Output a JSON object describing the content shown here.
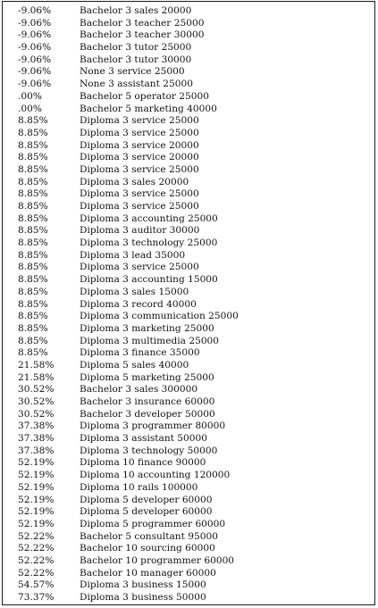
{
  "rows": [
    {
      "pct": "-9.06%",
      "desc": "Bachelor 3 sales 20000"
    },
    {
      "pct": "-9.06%",
      "desc": "Bachelor 3 teacher 25000"
    },
    {
      "pct": "-9.06%",
      "desc": "Bachelor 3 teacher 30000"
    },
    {
      "pct": "-9.06%",
      "desc": "Bachelor 3 tutor 25000"
    },
    {
      "pct": "-9.06%",
      "desc": "Bachelor 3 tutor 30000"
    },
    {
      "pct": "-9.06%",
      "desc": "None 3 service 25000"
    },
    {
      "pct": "-9.06%",
      "desc": "None 3 assistant 25000"
    },
    {
      "pct": ".00%",
      "desc": "Bachelor 5 operator 25000"
    },
    {
      "pct": ".00%",
      "desc": "Bachelor 5 marketing 40000"
    },
    {
      "pct": "8.85%",
      "desc": "Diploma 3 service 25000"
    },
    {
      "pct": "8.85%",
      "desc": "Diploma 3 service 25000"
    },
    {
      "pct": "8.85%",
      "desc": "Diploma 3 service 20000"
    },
    {
      "pct": "8.85%",
      "desc": "Diploma 3 service 20000"
    },
    {
      "pct": "8.85%",
      "desc": "Diploma 3 service 25000"
    },
    {
      "pct": "8.85%",
      "desc": "Diploma 3 sales 20000"
    },
    {
      "pct": "8.85%",
      "desc": "Diploma 3 service 25000"
    },
    {
      "pct": "8.85%",
      "desc": "Diploma 3 service 25000"
    },
    {
      "pct": "8.85%",
      "desc": "Diploma 3 accounting 25000"
    },
    {
      "pct": "8.85%",
      "desc": "Diploma 3 auditor 30000"
    },
    {
      "pct": "8.85%",
      "desc": "Diploma 3 technology 25000"
    },
    {
      "pct": "8.85%",
      "desc": "Diploma 3 lead 35000"
    },
    {
      "pct": "8.85%",
      "desc": "Diploma 3 service 25000"
    },
    {
      "pct": "8.85%",
      "desc": "Diploma 3 accounting 15000"
    },
    {
      "pct": "8.85%",
      "desc": "Diploma 3 sales 15000"
    },
    {
      "pct": "8.85%",
      "desc": "Diploma 3 record 40000"
    },
    {
      "pct": "8.85%",
      "desc": "Diploma 3 communication 25000"
    },
    {
      "pct": "8.85%",
      "desc": "Diploma 3 marketing 25000"
    },
    {
      "pct": "8.85%",
      "desc": "Diploma 3 multimedia 25000"
    },
    {
      "pct": "8.85%",
      "desc": "Diploma 3 finance 35000"
    },
    {
      "pct": "21.58%",
      "desc": "Diploma 5 sales 40000"
    },
    {
      "pct": "21.58%",
      "desc": "Diploma 5 marketing 25000"
    },
    {
      "pct": "30.52%",
      "desc": "Bachelor 3 sales 300000"
    },
    {
      "pct": "30.52%",
      "desc": "Bachelor 3 insurance 60000"
    },
    {
      "pct": "30.52%",
      "desc": "Bachelor 3 developer 50000"
    },
    {
      "pct": "37.38%",
      "desc": "Diploma 3 programmer 80000"
    },
    {
      "pct": "37.38%",
      "desc": "Diploma 3 assistant 50000"
    },
    {
      "pct": "37.38%",
      "desc": "Diploma 3 technology 50000"
    },
    {
      "pct": "52.19%",
      "desc": "Diploma 10 finance 90000"
    },
    {
      "pct": "52.19%",
      "desc": "Diploma 10 accounting 120000"
    },
    {
      "pct": "52.19%",
      "desc": "Diploma 10 rails 100000"
    },
    {
      "pct": "52.19%",
      "desc": "Diploma 5 developer 60000"
    },
    {
      "pct": "52.19%",
      "desc": "Diploma 5 developer 60000"
    },
    {
      "pct": "52.19%",
      "desc": "Diploma 5 programmer 60000"
    },
    {
      "pct": "52.22%",
      "desc": "Bachelor 5 consultant 95000"
    },
    {
      "pct": "52.22%",
      "desc": "Bachelor 10 sourcing 60000"
    },
    {
      "pct": "52.22%",
      "desc": "Bachelor 10 programmer 60000"
    },
    {
      "pct": "52.22%",
      "desc": "Bachelor 10 manager 60000"
    },
    {
      "pct": "54.57%",
      "desc": "Diploma 3 business 15000"
    },
    {
      "pct": "73.37%",
      "desc": "Diploma 3 business 50000"
    }
  ]
}
